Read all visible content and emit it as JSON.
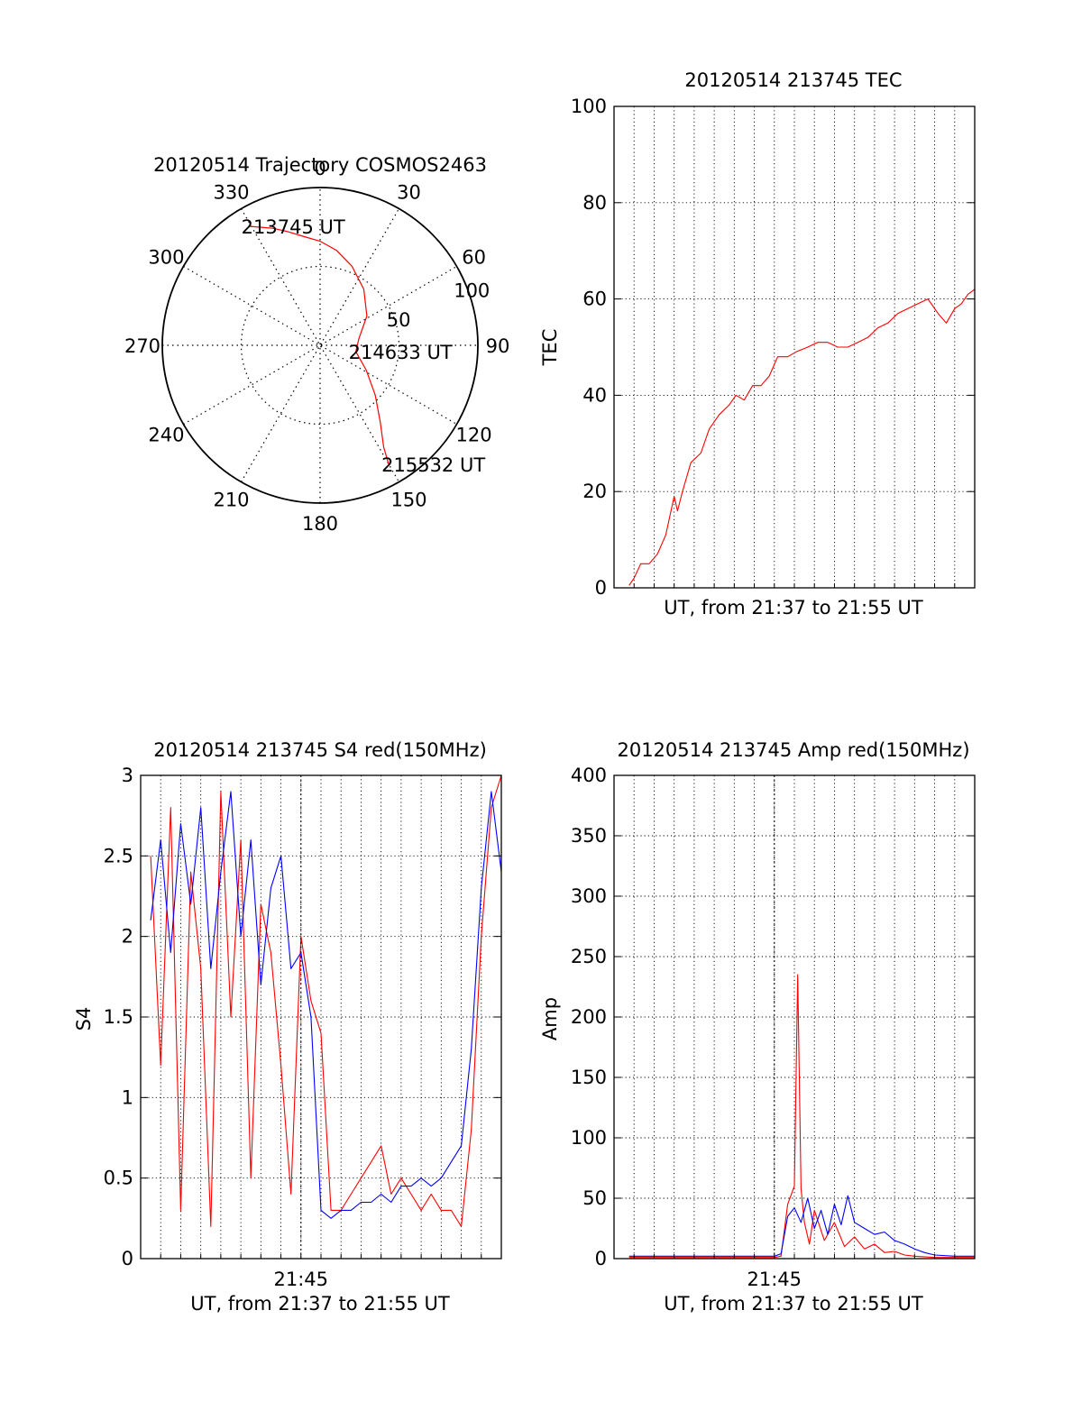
{
  "chart_data": [
    {
      "type": "polar",
      "title": "20120514 Trajectory COSMOS2463",
      "azimuth_labels": [
        "0",
        "30",
        "60",
        "90",
        "120",
        "150",
        "180",
        "210",
        "240",
        "270",
        "300",
        "330"
      ],
      "radial_labels": [
        "50",
        "100"
      ],
      "rlim": [
        0,
        100
      ],
      "grid": true,
      "series": [
        {
          "color": "#ff0000",
          "azimuth_deg": [
            329,
            333,
            338,
            344,
            351,
            0,
            10,
            22,
            38,
            58,
            80,
            100,
            118,
            132,
            142,
            148,
            150
          ],
          "radial": [
            88,
            84,
            80,
            75,
            70,
            66,
            61,
            54,
            45,
            35,
            25,
            23,
            33,
            47,
            62,
            76,
            87
          ]
        }
      ],
      "annotations": [
        {
          "text": "213745 UT",
          "azimuth_deg": 329,
          "radial": 88
        },
        {
          "text": "214633 UT",
          "azimuth_deg": 100,
          "radial": 23
        },
        {
          "text": "215532 UT",
          "azimuth_deg": 150,
          "radial": 87
        }
      ]
    },
    {
      "type": "line",
      "title": "20120514 213745 TEC",
      "xlabel": "UT, from 21:37 to 21:55 UT",
      "ylabel": "TEC",
      "xlim": [
        "21:37",
        "21:55"
      ],
      "ylim": [
        0,
        100
      ],
      "yticks": [
        "0",
        "20",
        "40",
        "60",
        "80",
        "100"
      ],
      "xticks": [],
      "grid": true,
      "series": [
        {
          "color": "#ff0000",
          "x": [
            "21:37:45",
            "21:38:00",
            "21:38:20",
            "21:38:45",
            "21:39:10",
            "21:39:35",
            "21:40:00",
            "21:40:10",
            "21:40:25",
            "21:40:50",
            "21:41:20",
            "21:41:45",
            "21:42:15",
            "21:42:45",
            "21:43:05",
            "21:43:30",
            "21:43:55",
            "21:44:20",
            "21:44:45",
            "21:45:10",
            "21:45:40",
            "21:46:05",
            "21:46:40",
            "21:47:10",
            "21:47:40",
            "21:48:10",
            "21:48:40",
            "21:49:10",
            "21:49:40",
            "21:50:10",
            "21:50:40",
            "21:51:10",
            "21:51:40",
            "21:52:10",
            "21:52:40",
            "21:53:10",
            "21:53:35",
            "21:54:00",
            "21:54:20",
            "21:54:40",
            "21:55:00"
          ],
          "y": [
            0.5,
            2,
            5,
            5,
            7,
            11,
            19,
            16,
            20,
            26,
            28,
            33,
            36,
            38,
            40,
            39,
            42,
            42,
            44,
            48,
            48,
            49,
            50,
            51,
            51,
            50,
            50,
            51,
            52,
            54,
            55,
            57,
            58,
            59,
            60,
            57,
            55,
            58,
            59,
            61,
            62
          ]
        }
      ]
    },
    {
      "type": "line",
      "title": "20120514 213745 S4 red(150MHz)",
      "xlabel": "UT, from 21:37 to 21:55 UT",
      "ylabel": "S4",
      "xlim": [
        "21:37",
        "21:55"
      ],
      "ylim": [
        0,
        3
      ],
      "yticks": [
        "0",
        "0.5",
        "1",
        "1.5",
        "2",
        "2.5",
        "3"
      ],
      "xticks": [
        "21:45"
      ],
      "grid": true,
      "series": [
        {
          "color": "#ff0000",
          "x": [
            "21:37:30",
            "21:38:00",
            "21:38:30",
            "21:39:00",
            "21:39:30",
            "21:40:00",
            "21:40:30",
            "21:41:00",
            "21:41:30",
            "21:42:00",
            "21:42:30",
            "21:43:00",
            "21:43:30",
            "21:44:00",
            "21:44:30",
            "21:45:00",
            "21:45:30",
            "21:46:00",
            "21:46:30",
            "21:47:00",
            "21:47:30",
            "21:48:00",
            "21:48:30",
            "21:49:00",
            "21:49:30",
            "21:50:00",
            "21:50:30",
            "21:51:00",
            "21:51:30",
            "21:52:00",
            "21:52:30",
            "21:53:00",
            "21:53:30",
            "21:54:00",
            "21:54:30",
            "21:55:00"
          ],
          "y": [
            2.5,
            1.2,
            2.8,
            0.3,
            2.4,
            1.8,
            0.2,
            2.9,
            1.5,
            2.6,
            0.5,
            2.2,
            1.9,
            1.2,
            0.4,
            2.0,
            1.6,
            1.4,
            0.3,
            0.3,
            0.4,
            0.5,
            0.6,
            0.7,
            0.4,
            0.5,
            0.4,
            0.3,
            0.4,
            0.3,
            0.3,
            0.2,
            0.8,
            2.0,
            2.8,
            3.0
          ]
        },
        {
          "color": "#0000ff",
          "x": [
            "21:37:30",
            "21:38:00",
            "21:38:30",
            "21:39:00",
            "21:39:30",
            "21:40:00",
            "21:40:30",
            "21:41:00",
            "21:41:30",
            "21:42:00",
            "21:42:30",
            "21:43:00",
            "21:43:30",
            "21:44:00",
            "21:44:30",
            "21:45:00",
            "21:45:30",
            "21:46:00",
            "21:46:30",
            "21:47:00",
            "21:47:30",
            "21:48:00",
            "21:48:30",
            "21:49:00",
            "21:49:30",
            "21:50:00",
            "21:50:30",
            "21:51:00",
            "21:51:30",
            "21:52:00",
            "21:52:30",
            "21:53:00",
            "21:53:30",
            "21:54:00",
            "21:54:30",
            "21:55:00"
          ],
          "y": [
            2.1,
            2.6,
            1.9,
            2.7,
            2.2,
            2.8,
            1.8,
            2.4,
            2.9,
            2.0,
            2.6,
            1.7,
            2.3,
            2.5,
            1.8,
            1.9,
            1.5,
            0.3,
            0.25,
            0.3,
            0.3,
            0.35,
            0.35,
            0.4,
            0.35,
            0.45,
            0.45,
            0.5,
            0.45,
            0.5,
            0.6,
            0.7,
            1.3,
            2.3,
            2.9,
            2.4
          ]
        }
      ]
    },
    {
      "type": "line",
      "title": "20120514 213745 Amp red(150MHz)",
      "xlabel": "UT, from 21:37 to 21:55 UT",
      "ylabel": "Amp",
      "xlim": [
        "21:37",
        "21:55"
      ],
      "ylim": [
        0,
        400
      ],
      "yticks": [
        "0",
        "50",
        "100",
        "150",
        "200",
        "250",
        "300",
        "350",
        "400"
      ],
      "xticks": [
        "21:45"
      ],
      "grid": true,
      "series": [
        {
          "color": "#ff0000",
          "x": [
            "21:37:45",
            "21:39:00",
            "21:41:00",
            "21:43:00",
            "21:44:30",
            "21:45:00",
            "21:45:20",
            "21:45:40",
            "21:46:00",
            "21:46:10",
            "21:46:20",
            "21:46:30",
            "21:46:45",
            "21:47:00",
            "21:47:30",
            "21:48:00",
            "21:48:30",
            "21:49:00",
            "21:49:30",
            "21:50:00",
            "21:50:30",
            "21:51:00",
            "21:51:30",
            "21:52:00",
            "21:53:00",
            "21:54:00",
            "21:55:00"
          ],
          "y": [
            1,
            1,
            1,
            1,
            1,
            1,
            2,
            45,
            60,
            235,
            58,
            30,
            12,
            40,
            15,
            30,
            10,
            18,
            8,
            12,
            5,
            6,
            3,
            2,
            1,
            1,
            1
          ]
        },
        {
          "color": "#0000ff",
          "x": [
            "21:37:45",
            "21:39:00",
            "21:41:00",
            "21:43:00",
            "21:44:30",
            "21:45:00",
            "21:45:20",
            "21:45:40",
            "21:46:00",
            "21:46:20",
            "21:46:40",
            "21:47:00",
            "21:47:20",
            "21:47:40",
            "21:48:00",
            "21:48:20",
            "21:48:40",
            "21:49:00",
            "21:49:30",
            "21:50:00",
            "21:50:30",
            "21:51:00",
            "21:51:30",
            "21:52:00",
            "21:52:30",
            "21:53:00",
            "21:54:00",
            "21:55:00"
          ],
          "y": [
            2,
            2,
            2,
            2,
            2,
            2,
            4,
            35,
            42,
            30,
            50,
            25,
            40,
            20,
            45,
            28,
            52,
            30,
            25,
            20,
            22,
            15,
            12,
            8,
            5,
            3,
            2,
            2
          ]
        }
      ]
    }
  ]
}
